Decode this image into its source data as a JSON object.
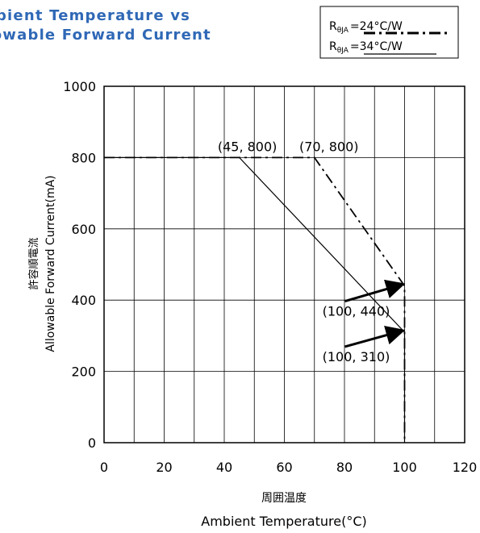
{
  "chart_data": {
    "type": "line",
    "title": [
      "mbient Temperature vs",
      "llowable Forward Current"
    ],
    "xlabel": [
      "周囲温度",
      "Ambient Temperature(°C)"
    ],
    "ylabel": [
      "許容順電流",
      "Allowable Forward Current(mA)"
    ],
    "xlim": [
      0,
      120
    ],
    "ylim": [
      0,
      1000
    ],
    "xticks": [
      0,
      20,
      40,
      60,
      80,
      100,
      120
    ],
    "xtick_labels": [
      "0",
      "20",
      "40",
      "60",
      "80",
      "100",
      "120"
    ],
    "yticks": [
      0,
      200,
      400,
      600,
      800,
      1000
    ],
    "ytick_labels": [
      "0",
      "200",
      "400",
      "600",
      "800",
      "1000"
    ],
    "x_minor_grid": [
      10,
      30,
      50,
      70,
      90,
      110
    ],
    "grid": true,
    "legend": {
      "position": "top-right",
      "entries": [
        {
          "symbol": "R",
          "subscript": "θJA",
          "text": "=24°C/W"
        },
        {
          "symbol": "R",
          "subscript": "θJA",
          "text": "=34°C/W"
        }
      ]
    },
    "series": [
      {
        "name": "RθJA=24°C/W",
        "style": "dash-dot",
        "x": [
          0,
          70,
          100,
          100
        ],
        "y": [
          800,
          800,
          440,
          0
        ]
      },
      {
        "name": "RθJA=34°C/W",
        "style": "solid",
        "x": [
          0,
          45,
          100,
          100
        ],
        "y": [
          800,
          800,
          310,
          0
        ]
      }
    ],
    "annotations": [
      {
        "text": "(45, 800)",
        "x": 45,
        "y": 800
      },
      {
        "text": "(70, 800)",
        "x": 70,
        "y": 800
      },
      {
        "text": "(100, 440)",
        "x": 100,
        "y": 440
      },
      {
        "text": "(100, 310)",
        "x": 100,
        "y": 310
      }
    ],
    "colors": {
      "title": "#2f68b6",
      "line": "#000000",
      "grid": "#000000"
    }
  }
}
